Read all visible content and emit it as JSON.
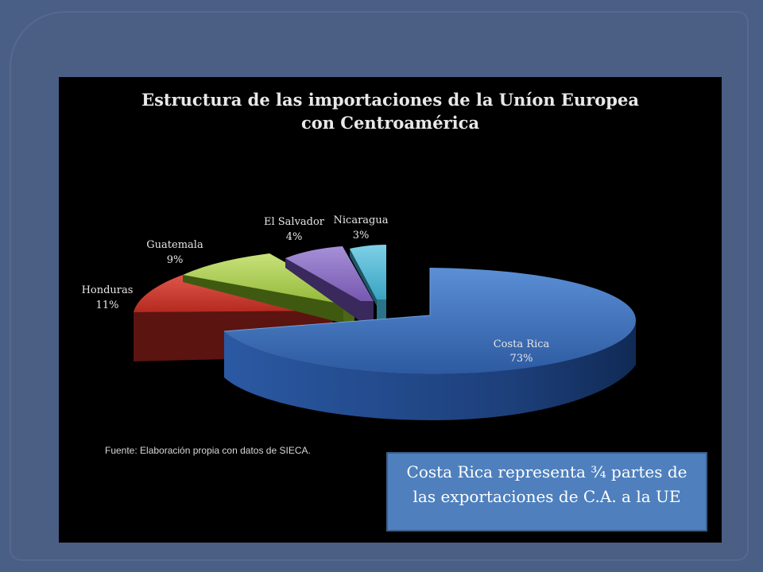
{
  "chart_data": {
    "type": "pie",
    "title_line1": "Estructura de las importaciones de la Uníon Europea",
    "title_line2": "con Centroamérica",
    "slices": [
      {
        "label": "Costa Rica",
        "value": 73,
        "value_label": "73%",
        "color": "#3c6fb5",
        "side_color": "#1c3f78"
      },
      {
        "label": "Honduras",
        "value": 11,
        "value_label": "11%",
        "color": "#c0392b",
        "side_color": "#5e1410"
      },
      {
        "label": "Guatemala",
        "value": 9,
        "value_label": "9%",
        "color": "#a9d04a",
        "side_color": "#4e6a14"
      },
      {
        "label": "El Salvador",
        "value": 4,
        "value_label": "4%",
        "color": "#8a6cc0",
        "side_color": "#3b2a5e"
      },
      {
        "label": "Nicaragua",
        "value": 3,
        "value_label": "3%",
        "color": "#4fb7d4",
        "side_color": "#1c5566"
      }
    ],
    "legend": "none"
  },
  "source_note": "Fuente: Elaboración propia con datos de SIECA.",
  "callout": {
    "text": "Costa Rica representa ¾ partes de  las exportaciones de C.A. a la UE"
  }
}
